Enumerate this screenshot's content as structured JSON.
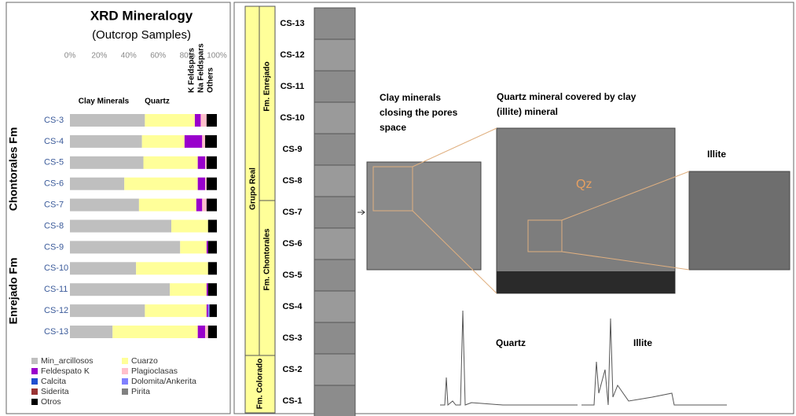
{
  "chart_data": {
    "type": "stacked-barh",
    "title": "XRD Mineralogy",
    "subtitle": "(Outcrop Samples)",
    "categories": [
      "CS-3",
      "CS-4",
      "CS-5",
      "CS-6",
      "CS-7",
      "CS-8",
      "CS-9",
      "CS-10",
      "CS-11",
      "CS-12",
      "CS-13"
    ],
    "xlim": [
      0,
      100
    ],
    "xticks": [
      {
        "value": 0,
        "label": "0%"
      },
      {
        "value": 20,
        "label": "20%"
      },
      {
        "value": 40,
        "label": "40%"
      },
      {
        "value": 60,
        "label": "60%"
      },
      {
        "value": 80,
        "label": "80%"
      },
      {
        "value": 100,
        "label": "100%"
      }
    ],
    "column_headers": [
      "Clay Minerals",
      "Quartz",
      "K Feldspars",
      "Na Feldspars",
      "Others"
    ],
    "group_labels": [
      "Chontorales Fm",
      "Enrejado Fm"
    ],
    "series": [
      {
        "name": "Min_arcillosos",
        "color": "#bfbfbf",
        "values": [
          51,
          49,
          50,
          37,
          47,
          69,
          75,
          45,
          68,
          51,
          29
        ]
      },
      {
        "name": "Cuarzo",
        "color": "#ffff99",
        "values": [
          34,
          29,
          37,
          50,
          39,
          25,
          18,
          49,
          25,
          42,
          58
        ]
      },
      {
        "name": "Feldespato K",
        "color": "#9900cc",
        "values": [
          4,
          12,
          5,
          5,
          4,
          0,
          1,
          0,
          1,
          1,
          5
        ]
      },
      {
        "name": "Plagioclasas",
        "color": "#ffc0cb",
        "values": [
          4,
          2,
          1,
          1,
          3,
          0,
          0,
          0,
          0,
          0,
          2
        ]
      },
      {
        "name": "Calcita",
        "color": "#1f4fd0",
        "values": [
          0,
          0,
          0,
          0,
          0,
          0,
          0,
          0,
          0,
          0,
          0
        ]
      },
      {
        "name": "Dolomita/Ankerita",
        "color": "#8080ff",
        "values": [
          0,
          0,
          0,
          0,
          0,
          0,
          0,
          0,
          0,
          1,
          0
        ]
      },
      {
        "name": "Siderita",
        "color": "#993333",
        "values": [
          0,
          0,
          0,
          0,
          0,
          0,
          0,
          0,
          0,
          0,
          0
        ]
      },
      {
        "name": "Pirita",
        "color": "#808080",
        "values": [
          0,
          0,
          0,
          0,
          0,
          0,
          0,
          0,
          0,
          0,
          0
        ]
      },
      {
        "name": "Otros",
        "color": "#000000",
        "values": [
          7,
          8,
          7,
          7,
          7,
          6,
          6,
          6,
          6,
          5,
          6
        ]
      }
    ]
  },
  "stratigraphy": {
    "units": [
      "Grupo Real",
      "Fm. Enrejado",
      "Fm. Chontorales",
      "Fm. Colorado"
    ],
    "samples": [
      "CS-13",
      "CS-12",
      "CS-11",
      "CS-10",
      "CS-9",
      "CS-8",
      "CS-7",
      "CS-6",
      "CS-5",
      "CS-4",
      "CS-3",
      "CS-2",
      "CS-1"
    ]
  },
  "annotations": {
    "clay": [
      "Clay minerals",
      "closing the pores",
      "space"
    ],
    "quartz": [
      "Quartz mineral covered by clay",
      "(illite) mineral"
    ],
    "illite": "Illite",
    "qz": "Qz",
    "spectrum_quartz": "Quartz",
    "spectrum_illite": "Illite"
  }
}
